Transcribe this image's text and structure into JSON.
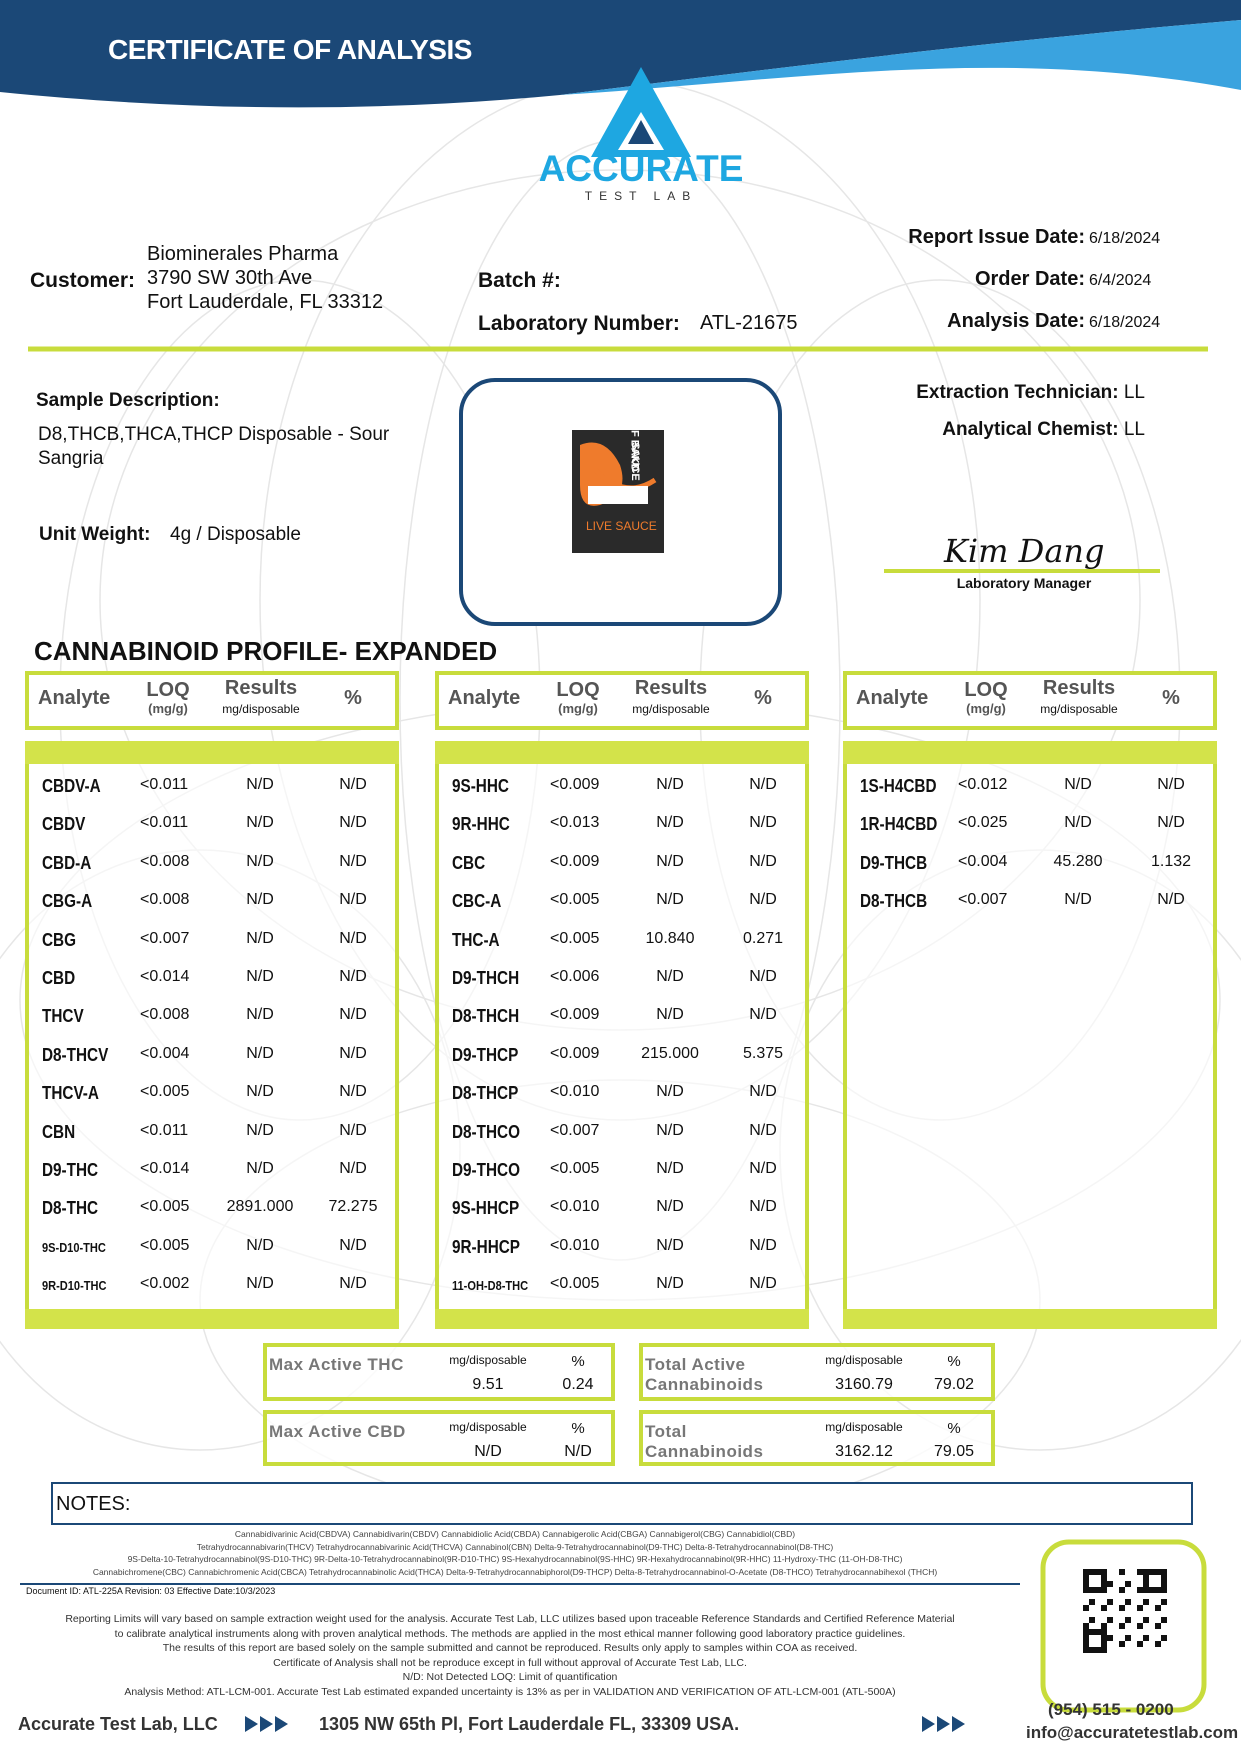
{
  "header": {
    "title": "CERTIFICATE OF ANALYSIS",
    "logo": "ACCURATE",
    "logo_sub": "TEST LAB"
  },
  "info": {
    "customer_label": "Customer:",
    "customer": [
      "Biominerales Pharma",
      "3790 SW 30th Ave",
      "Fort Lauderdale, FL 33312"
    ],
    "batch_label": "Batch #:",
    "lab_number_label": "Laboratory Number:",
    "lab_number": "ATL-21675",
    "dates": [
      {
        "label": "Report Issue Date:",
        "value": "6/18/2024"
      },
      {
        "label": "Order Date:",
        "value": "6/4/2024"
      },
      {
        "label": "Analysis Date:",
        "value": "6/18/2024"
      }
    ]
  },
  "sample": {
    "description_label": "Sample Description:",
    "description": "D8,THCB,THCA,THCP Disposable - Sour Sangria",
    "unit_weight_label": "Unit Weight:",
    "unit_weight": "4g / Disposable",
    "image_text": [
      "HALF BAKD",
      "SAUCE",
      "LIVE SAUCE"
    ]
  },
  "staff": {
    "technician_label": "Extraction Technician:",
    "technician": "LL",
    "chemist_label": "Analytical Chemist:",
    "chemist": "LL",
    "signature": "Kim Dang",
    "signature_title": "Laboratory Manager"
  },
  "profile": {
    "title": "CANNABINOID PROFILE- EXPANDED",
    "columns": {
      "analyte": "Analyte",
      "loq": "LOQ",
      "loq_unit": "(mg/g)",
      "results": "Results",
      "results_unit": "mg/disposable",
      "pct": "%"
    },
    "tables": [
      [
        [
          "CBDV-A",
          "<0.011",
          "N/D",
          "N/D"
        ],
        [
          "CBDV",
          "<0.011",
          "N/D",
          "N/D"
        ],
        [
          "CBD-A",
          "<0.008",
          "N/D",
          "N/D"
        ],
        [
          "CBG-A",
          "<0.008",
          "N/D",
          "N/D"
        ],
        [
          "CBG",
          "<0.007",
          "N/D",
          "N/D"
        ],
        [
          "CBD",
          "<0.014",
          "N/D",
          "N/D"
        ],
        [
          "THCV",
          "<0.008",
          "N/D",
          "N/D"
        ],
        [
          "D8-THCV",
          "<0.004",
          "N/D",
          "N/D"
        ],
        [
          "THCV-A",
          "<0.005",
          "N/D",
          "N/D"
        ],
        [
          "CBN",
          "<0.011",
          "N/D",
          "N/D"
        ],
        [
          "D9-THC",
          "<0.014",
          "N/D",
          "N/D"
        ],
        [
          "D8-THC",
          "<0.005",
          "2891.000",
          "72.275"
        ],
        [
          "9S-D10-THC",
          "<0.005",
          "N/D",
          "N/D"
        ],
        [
          "9R-D10-THC",
          "<0.002",
          "N/D",
          "N/D"
        ]
      ],
      [
        [
          "9S-HHC",
          "<0.009",
          "N/D",
          "N/D"
        ],
        [
          "9R-HHC",
          "<0.013",
          "N/D",
          "N/D"
        ],
        [
          "CBC",
          "<0.009",
          "N/D",
          "N/D"
        ],
        [
          "CBC-A",
          "<0.005",
          "N/D",
          "N/D"
        ],
        [
          "THC-A",
          "<0.005",
          "10.840",
          "0.271"
        ],
        [
          "D9-THCH",
          "<0.006",
          "N/D",
          "N/D"
        ],
        [
          "D8-THCH",
          "<0.009",
          "N/D",
          "N/D"
        ],
        [
          "D9-THCP",
          "<0.009",
          "215.000",
          "5.375"
        ],
        [
          "D8-THCP",
          "<0.010",
          "N/D",
          "N/D"
        ],
        [
          "D8-THCO",
          "<0.007",
          "N/D",
          "N/D"
        ],
        [
          "D9-THCO",
          "<0.005",
          "N/D",
          "N/D"
        ],
        [
          "9S-HHCP",
          "<0.010",
          "N/D",
          "N/D"
        ],
        [
          "9R-HHCP",
          "<0.010",
          "N/D",
          "N/D"
        ],
        [
          "11-OH-D8-THC",
          "<0.005",
          "N/D",
          "N/D"
        ]
      ],
      [
        [
          "1S-H4CBD",
          "<0.012",
          "N/D",
          "N/D"
        ],
        [
          "1R-H4CBD",
          "<0.025",
          "N/D",
          "N/D"
        ],
        [
          "D9-THCB",
          "<0.004",
          "45.280",
          "1.132"
        ],
        [
          "D8-THCB",
          "<0.007",
          "N/D",
          "N/D"
        ]
      ]
    ]
  },
  "summary": [
    {
      "label": "Max Active THC",
      "mg_label": "mg/disposable",
      "pct_label": "%",
      "mg": "9.51",
      "pct": "0.24"
    },
    {
      "label": "Total Active Cannabinoids",
      "mg_label": "mg/disposable",
      "pct_label": "%",
      "mg": "3160.79",
      "pct": "79.02"
    },
    {
      "label": "Max Active CBD",
      "mg_label": "mg/disposable",
      "pct_label": "%",
      "mg": "N/D",
      "pct": "N/D"
    },
    {
      "label": "Total Cannabinoids",
      "mg_label": "mg/disposable",
      "pct_label": "%",
      "mg": "3162.12",
      "pct": "79.05"
    }
  ],
  "notes": {
    "label": "NOTES:",
    "abbreviations": [
      "Cannabidivarinic Acid(CBDVA)  Cannabidivarin(CBDV)  Cannabidiolic Acid(CBDA)  Cannabigerolic Acid(CBGA)  Cannabigerol(CBG)  Cannabidiol(CBD)",
      "Tetrahydrocannabivarin(THCV)  Tetrahydrocannabivarinic Acid(THCVA)  Cannabinol(CBN)  Delta-9-Tetrahydrocannabinol(D9-THC)  Delta-8-Tetrahydrocannabinol(D8-THC)",
      "9S-Delta-10-Tetrahydrocannabinol(9S-D10-THC)  9R-Delta-10-Tetrahydrocannabinol(9R-D10-THC)  9S-Hexahydrocannabinol(9S-HHC)  9R-Hexahydrocannabinol(9R-HHC)  11-Hydroxy-THC (11-OH-D8-THC)",
      "Cannabichromene(CBC)  Cannabichromenic Acid(CBCA)  Tetrahydrocannabinolic Acid(THCA)  Delta-9-Tetrahydrocannabiphorol(D9-THCP)  Delta-8-Tetrahydrocannabinol-O-Acetate (D8-THCO)  Tetrahydrocannabihexol (THCH)"
    ],
    "document_id": "Document ID: ATL-225A   Revision: 03    Effective Date:10/3/2023",
    "disclaimer": [
      "Reporting Limits will vary based on sample extraction weight used for the analysis. Accurate Test Lab, LLC utilizes based upon traceable Reference Standards and Certified Reference Material",
      "to calibrate analytical instruments along with proven analytical methods. The methods are applied in the most ethical manner following good laboratory practice guidelines.",
      "The results of this report are based solely on the sample submitted and cannot be reproduced. Results only apply to samples within COA as received.",
      "Certificate of Analysis shall not be reproduce except in full without approval of Accurate Test Lab, LLC.",
      "N/D: Not Detected   LOQ: Limit of quantification",
      "Analysis Method: ATL-LCM-001.   Accurate Test Lab estimated expanded uncertainty is 13% as per in VALIDATION AND VERIFICATION OF ATL-LCM-001 (ATL-500A)"
    ]
  },
  "footer": {
    "company": "Accurate Test Lab, LLC",
    "address": "1305 NW 65th Pl, Fort Lauderdale FL, 33309 USA.",
    "phone": "(954) 515 - 0200",
    "email": "info@accuratetestlab.com"
  }
}
